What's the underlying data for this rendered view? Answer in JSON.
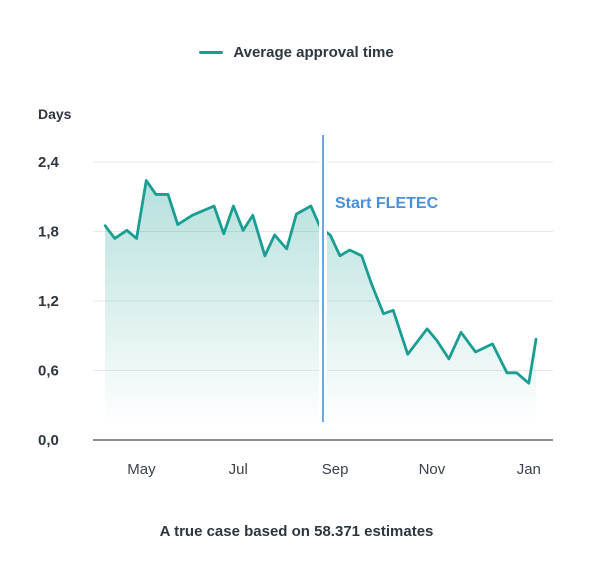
{
  "chart_data": {
    "type": "area",
    "title": "",
    "ylabel": "Days",
    "xlabel": "",
    "ylim": [
      0.0,
      2.4
    ],
    "y_ticks": [
      "0,0",
      "0,6",
      "1,2",
      "1,8",
      "2,4"
    ],
    "y_tick_values": [
      0.0,
      0.6,
      1.2,
      1.8,
      2.4
    ],
    "x_ticks": [
      "May",
      "Jul",
      "Sep",
      "Nov",
      "Jan"
    ],
    "x_tick_positions": [
      1,
      3,
      5,
      7,
      9
    ],
    "xlim": [
      0,
      9.5
    ],
    "grid": true,
    "legend_position": "top-center",
    "series": [
      {
        "name": "Average approval time",
        "color": "#1a9e93",
        "x": [
          0.25,
          0.45,
          0.7,
          0.9,
          1.1,
          1.3,
          1.55,
          1.75,
          2.05,
          2.5,
          2.7,
          2.9,
          3.1,
          3.3,
          3.55,
          3.75,
          4.0,
          4.2,
          4.5,
          4.7,
          4.9,
          5.1,
          5.3,
          5.55,
          5.75,
          6.0,
          6.2,
          6.5,
          6.9,
          7.1,
          7.35,
          7.6,
          7.9,
          8.25,
          8.55,
          8.75,
          9.0,
          9.15
        ],
        "values": [
          1.85,
          1.74,
          1.81,
          1.74,
          2.24,
          2.12,
          2.12,
          1.86,
          1.94,
          2.02,
          1.78,
          2.02,
          1.81,
          1.94,
          1.59,
          1.77,
          1.65,
          1.95,
          2.02,
          1.83,
          1.77,
          1.59,
          1.64,
          1.59,
          1.35,
          1.09,
          1.12,
          0.74,
          0.96,
          0.86,
          0.7,
          0.93,
          0.76,
          0.83,
          0.58,
          0.58,
          0.49,
          0.87
        ]
      }
    ],
    "annotations": [
      {
        "x": 4.75,
        "label": "Start FLETEC",
        "color": "#4a90d9"
      }
    ],
    "footnote": "A true case based on 58.371 estimates"
  }
}
